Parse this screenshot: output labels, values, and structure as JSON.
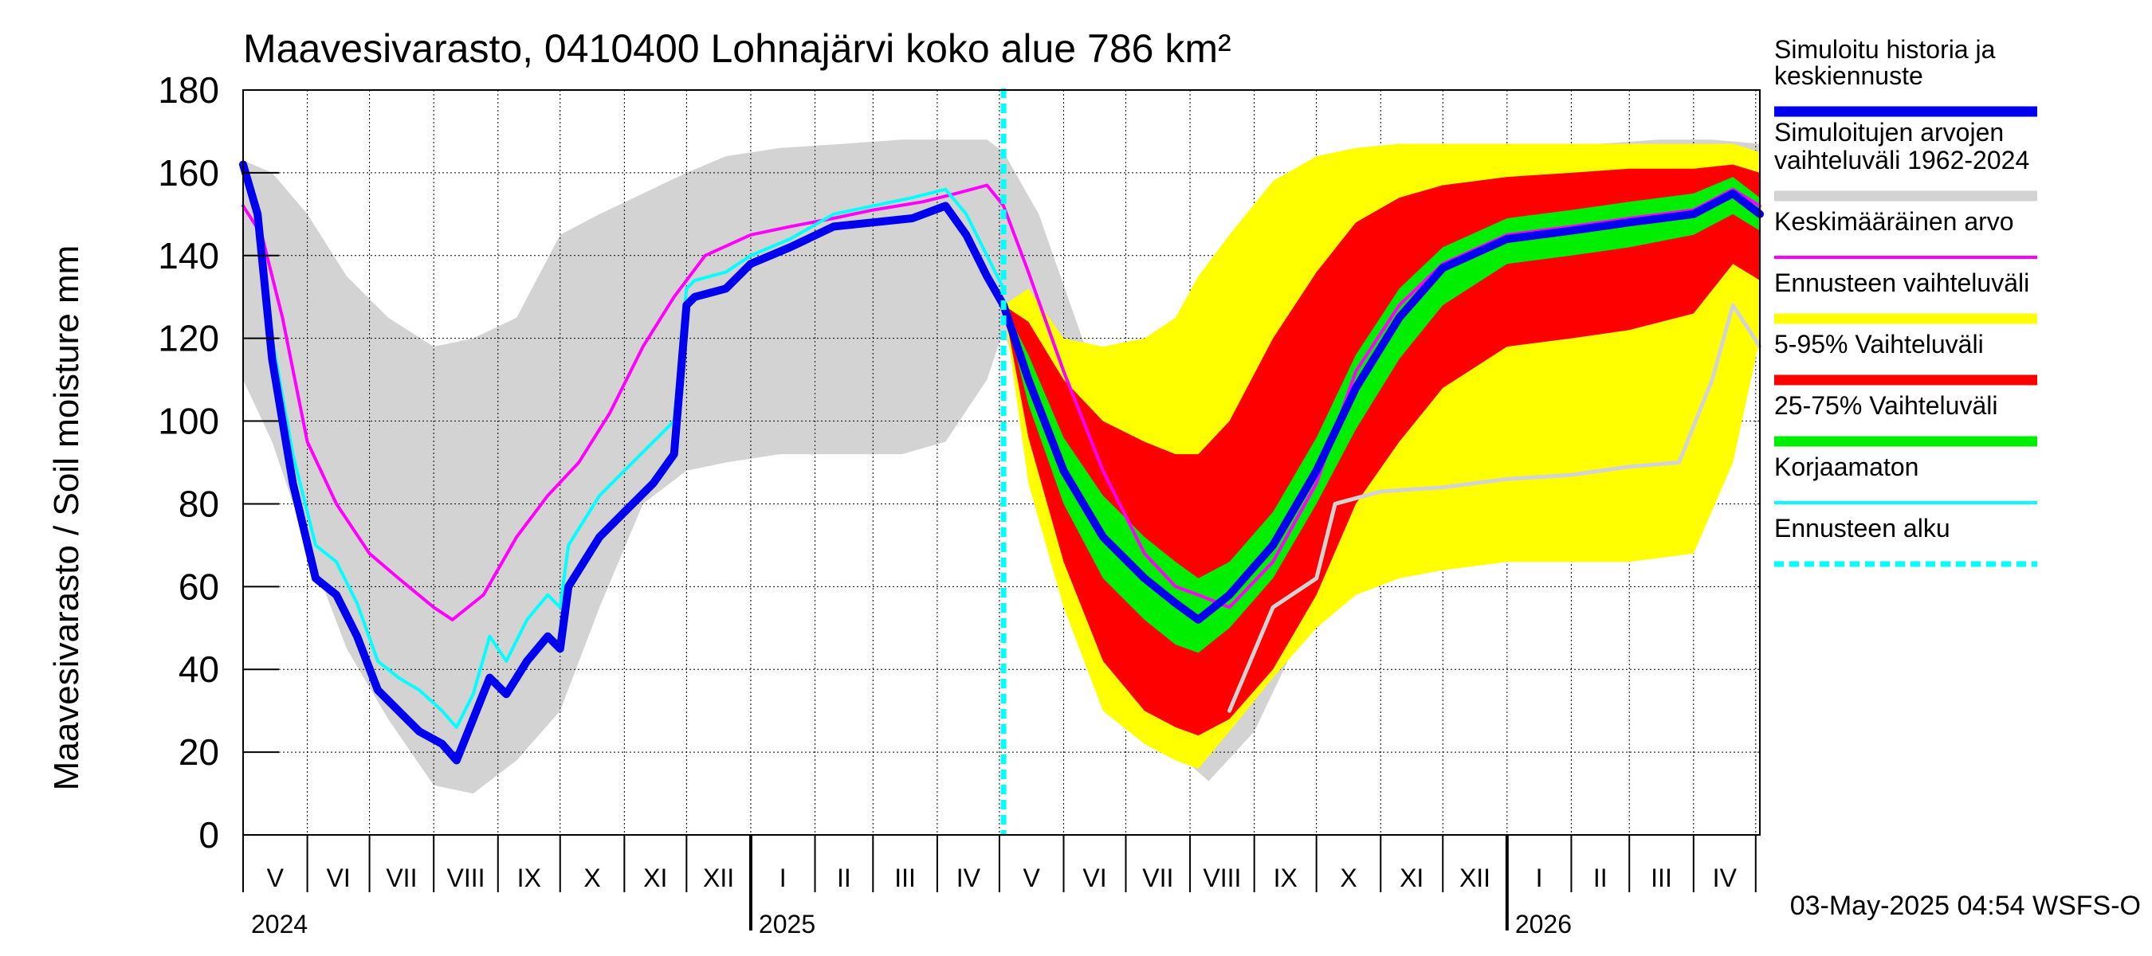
{
  "chart_data": {
    "type": "area",
    "title": "Maavesivarasto, 0410400 Lohnajärvi koko alue 786 km²",
    "ylabel": "Maavesivarasto / Soil moisture   mm",
    "xlabel": "",
    "ylim": [
      0,
      180
    ],
    "yticks": [
      "0",
      "20",
      "40",
      "60",
      "80",
      "100",
      "120",
      "140",
      "160",
      "180"
    ],
    "xlim": [
      "2024-05-01",
      "2026-05-03"
    ],
    "x_months": [
      "V",
      "VI",
      "VII",
      "VIII",
      "IX",
      "X",
      "XI",
      "XII",
      "I",
      "II",
      "III",
      "IV",
      "V",
      "VI",
      "VII",
      "VIII",
      "IX",
      "X",
      "XI",
      "XII",
      "I",
      "II",
      "III",
      "IV"
    ],
    "x_years": [
      {
        "label": "2024",
        "date": "2024-05-01"
      },
      {
        "label": "2025",
        "date": "2025-01-01"
      },
      {
        "label": "2026",
        "date": "2026-01-01"
      }
    ],
    "grid": true,
    "forecast_start": "2025-05-03",
    "timestamp": "03-May-2025 04:54 WSFS-O",
    "colors": {
      "history": "#0000ee",
      "range": "#d3d3d3",
      "mean": "#ff00ff",
      "forecast_range": "#ffff00",
      "p5_95": "#ff0000",
      "p25_75": "#00ee00",
      "uncorrected": "#00ffff",
      "forecast_start": "#00ffff"
    },
    "legend_position": "right",
    "legend": [
      {
        "key": "history",
        "label": "Simuloitu historia ja keskiennuste",
        "color": "#0000ee",
        "style": "thick"
      },
      {
        "key": "range",
        "label": "Simuloitujen arvojen vaihteluväli 1962-2024",
        "color": "#d3d3d3",
        "style": "band"
      },
      {
        "key": "mean",
        "label": "Keskimääräinen arvo",
        "color": "#ff00ff",
        "style": "line"
      },
      {
        "key": "forecast_range",
        "label": "Ennusteen vaihteluväli",
        "color": "#ffff00",
        "style": "band"
      },
      {
        "key": "p5_95",
        "label": "5-95% Vaihteluväli",
        "color": "#ff0000",
        "style": "band"
      },
      {
        "key": "p25_75",
        "label": "25-75% Vaihteluväli",
        "color": "#00ee00",
        "style": "band"
      },
      {
        "key": "uncorrected",
        "label": "Korjaamaton",
        "color": "#00ffff",
        "style": "line"
      },
      {
        "key": "forecast_start",
        "label": "Ennusteen alku",
        "color": "#00ffff",
        "style": "dashed"
      }
    ],
    "series": {
      "range_band": {
        "dates": [
          "2024-05-01",
          "2024-05-15",
          "2024-06-01",
          "2024-06-20",
          "2024-07-10",
          "2024-08-01",
          "2024-08-20",
          "2024-09-10",
          "2024-10-01",
          "2024-10-20",
          "2024-11-10",
          "2024-12-01",
          "2024-12-20",
          "2025-01-15",
          "2025-02-15",
          "2025-03-15",
          "2025-04-05",
          "2025-04-25",
          "2025-05-03",
          "2025-05-20",
          "2025-06-10",
          "2025-07-01",
          "2025-07-25",
          "2025-08-10",
          "2025-09-01",
          "2025-09-20",
          "2025-10-10",
          "2025-11-01",
          "2025-11-20",
          "2025-12-15",
          "2026-01-15",
          "2026-02-15",
          "2026-03-15",
          "2026-04-10",
          "2026-05-03"
        ],
        "upper": [
          163,
          160,
          150,
          135,
          125,
          118,
          120,
          125,
          145,
          150,
          155,
          160,
          164,
          166,
          167,
          168,
          168,
          168,
          165,
          150,
          120,
          95,
          92,
          100,
          130,
          150,
          158,
          163,
          165,
          166,
          167,
          167,
          168,
          168,
          167
        ],
        "lower": [
          110,
          95,
          70,
          45,
          28,
          12,
          10,
          18,
          30,
          55,
          80,
          88,
          90,
          92,
          92,
          92,
          95,
          110,
          122,
          95,
          60,
          35,
          20,
          13,
          25,
          45,
          60,
          70,
          75,
          78,
          82,
          85,
          88,
          110,
          125
        ]
      },
      "mean": {
        "dates": [
          "2024-05-01",
          "2024-05-10",
          "2024-05-20",
          "2024-06-01",
          "2024-06-15",
          "2024-07-01",
          "2024-07-15",
          "2024-08-01",
          "2024-08-10",
          "2024-08-25",
          "2024-09-10",
          "2024-09-25",
          "2024-10-10",
          "2024-10-25",
          "2024-11-10",
          "2024-11-25",
          "2024-12-10",
          "2025-01-01",
          "2025-01-20",
          "2025-02-10",
          "2025-03-01",
          "2025-03-25",
          "2025-04-10",
          "2025-04-25",
          "2025-05-03",
          "2025-05-15",
          "2025-06-01",
          "2025-06-20",
          "2025-07-10",
          "2025-07-25",
          "2025-08-05",
          "2025-08-20",
          "2025-09-10",
          "2025-10-01",
          "2025-10-20",
          "2025-11-10",
          "2025-12-01",
          "2026-01-01",
          "2026-02-01",
          "2026-03-01",
          "2026-04-01",
          "2026-04-20",
          "2026-05-03"
        ],
        "values": [
          152,
          145,
          125,
          95,
          80,
          68,
          62,
          55,
          52,
          58,
          72,
          82,
          90,
          102,
          118,
          130,
          140,
          145,
          147,
          149,
          151,
          153,
          155,
          157,
          152,
          136,
          112,
          88,
          68,
          60,
          58,
          55,
          66,
          85,
          112,
          128,
          138,
          145,
          147,
          149,
          151,
          156,
          152
        ]
      },
      "history": {
        "dates": [
          "2024-05-01",
          "2024-05-08",
          "2024-05-15",
          "2024-05-25",
          "2024-06-05",
          "2024-06-15",
          "2024-06-25",
          "2024-07-05",
          "2024-07-15",
          "2024-07-25",
          "2024-08-05",
          "2024-08-12",
          "2024-08-20",
          "2024-08-28",
          "2024-09-05",
          "2024-09-15",
          "2024-09-25",
          "2024-10-01",
          "2024-10-05",
          "2024-10-20",
          "2024-11-01",
          "2024-11-15",
          "2024-11-25",
          "2024-12-01",
          "2024-12-05",
          "2024-12-20",
          "2025-01-01",
          "2025-01-20",
          "2025-02-10",
          "2025-03-01",
          "2025-03-20",
          "2025-04-05",
          "2025-04-15",
          "2025-04-25",
          "2025-05-03"
        ],
        "values": [
          162,
          150,
          115,
          85,
          62,
          58,
          48,
          35,
          30,
          25,
          22,
          18,
          28,
          38,
          34,
          42,
          48,
          45,
          60,
          72,
          78,
          85,
          92,
          128,
          130,
          132,
          138,
          142,
          147,
          148,
          149,
          152,
          145,
          135,
          128
        ]
      },
      "uncorrected": {
        "dates": [
          "2024-05-01",
          "2024-05-08",
          "2024-05-15",
          "2024-05-25",
          "2024-06-05",
          "2024-06-15",
          "2024-06-25",
          "2024-07-05",
          "2024-07-15",
          "2024-07-25",
          "2024-08-05",
          "2024-08-12",
          "2024-08-20",
          "2024-08-28",
          "2024-09-05",
          "2024-09-15",
          "2024-09-25",
          "2024-10-01",
          "2024-10-05",
          "2024-10-20",
          "2024-11-01",
          "2024-11-15",
          "2024-11-25",
          "2024-12-01",
          "2024-12-05",
          "2024-12-20",
          "2025-01-01",
          "2025-01-20",
          "2025-02-10",
          "2025-03-01",
          "2025-03-20",
          "2025-04-05",
          "2025-04-15",
          "2025-04-25",
          "2025-05-03"
        ],
        "values": [
          162,
          152,
          120,
          92,
          70,
          66,
          56,
          42,
          38,
          35,
          30,
          26,
          34,
          48,
          42,
          52,
          58,
          55,
          70,
          82,
          88,
          95,
          100,
          132,
          134,
          136,
          140,
          144,
          150,
          152,
          154,
          156,
          150,
          140,
          132
        ]
      },
      "forecast": {
        "dates": [
          "2025-05-03",
          "2025-05-15",
          "2025-06-01",
          "2025-06-20",
          "2025-07-10",
          "2025-07-25",
          "2025-08-05",
          "2025-08-20",
          "2025-09-10",
          "2025-10-01",
          "2025-10-20",
          "2025-11-10",
          "2025-12-01",
          "2026-01-01",
          "2026-02-01",
          "2026-03-01",
          "2026-04-01",
          "2026-04-20",
          "2026-05-03"
        ],
        "median": [
          128,
          110,
          88,
          72,
          62,
          56,
          52,
          58,
          70,
          88,
          108,
          125,
          137,
          144,
          146,
          148,
          150,
          155,
          150
        ],
        "p25": [
          128,
          104,
          80,
          62,
          52,
          46,
          44,
          50,
          62,
          80,
          98,
          115,
          128,
          138,
          140,
          142,
          145,
          150,
          146
        ],
        "p75": [
          128,
          116,
          96,
          82,
          72,
          66,
          62,
          66,
          78,
          96,
          116,
          132,
          142,
          149,
          151,
          153,
          155,
          159,
          154
        ],
        "p5": [
          128,
          96,
          66,
          42,
          30,
          26,
          24,
          28,
          40,
          58,
          80,
          95,
          108,
          118,
          120,
          122,
          126,
          138,
          134
        ],
        "p95": [
          128,
          124,
          110,
          100,
          95,
          92,
          92,
          100,
          120,
          136,
          148,
          154,
          157,
          159,
          160,
          161,
          161,
          162,
          160
        ],
        "min": [
          128,
          85,
          55,
          30,
          22,
          18,
          16,
          25,
          38,
          50,
          58,
          62,
          64,
          66,
          66,
          66,
          68,
          90,
          120
        ],
        "max": [
          128,
          132,
          120,
          118,
          120,
          125,
          135,
          145,
          158,
          164,
          166,
          167,
          167,
          167,
          167,
          167,
          167,
          167,
          165
        ]
      },
      "forecast_min_line": {
        "dates": [
          "2025-08-20",
          "2025-09-10",
          "2025-10-01",
          "2025-10-10",
          "2025-11-01",
          "2025-12-01",
          "2026-01-01",
          "2026-02-01",
          "2026-03-01",
          "2026-03-25",
          "2026-04-10",
          "2026-04-20",
          "2026-05-03"
        ],
        "values": [
          30,
          55,
          62,
          80,
          83,
          84,
          86,
          87,
          89,
          90,
          110,
          128,
          118
        ]
      }
    }
  }
}
